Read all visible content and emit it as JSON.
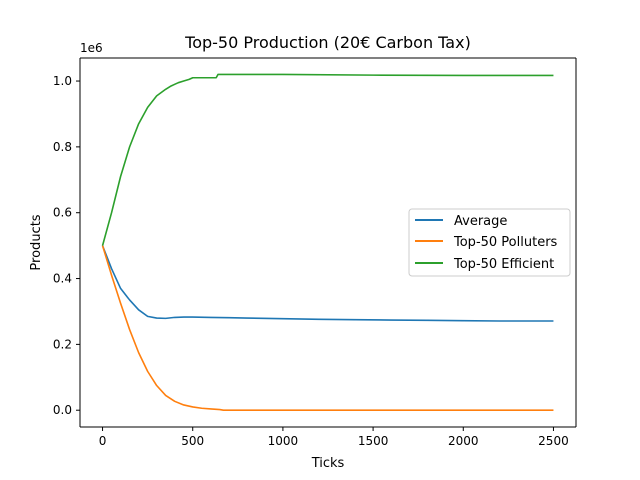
{
  "chart_data": {
    "type": "line",
    "title": "Top-50 Production (20€ Carbon Tax)",
    "xlabel": "Ticks",
    "ylabel": "Products",
    "y_multiplier_label": "1e6",
    "y_multiplier": 1000000,
    "xlim": [
      -125,
      2625
    ],
    "ylim": [
      -0.051,
      1.07
    ],
    "x_ticks": [
      0,
      500,
      1000,
      1500,
      2000,
      2500
    ],
    "x_tick_labels": [
      "0",
      "500",
      "1000",
      "1500",
      "2000",
      "2500"
    ],
    "y_ticks": [
      0.0,
      0.2,
      0.4,
      0.6,
      0.8,
      1.0
    ],
    "y_tick_labels": [
      "0.0",
      "0.2",
      "0.4",
      "0.6",
      "0.8",
      "1.0"
    ],
    "grid": false,
    "legend_position": "center-right",
    "series": [
      {
        "name": "Average",
        "color": "#1f77b4",
        "x": [
          0,
          50,
          100,
          150,
          200,
          250,
          300,
          350,
          400,
          450,
          500,
          600,
          700,
          800,
          1000,
          1200,
          1400,
          1600,
          1800,
          2000,
          2200,
          2400,
          2500
        ],
        "y": [
          0.5,
          0.43,
          0.37,
          0.335,
          0.305,
          0.285,
          0.28,
          0.279,
          0.282,
          0.283,
          0.283,
          0.282,
          0.281,
          0.28,
          0.278,
          0.276,
          0.275,
          0.274,
          0.273,
          0.272,
          0.271,
          0.271,
          0.271
        ]
      },
      {
        "name": "Top-50 Polluters",
        "color": "#ff7f0e",
        "x": [
          0,
          50,
          100,
          150,
          200,
          250,
          300,
          350,
          400,
          450,
          500,
          550,
          600,
          650,
          670,
          700,
          1000,
          1500,
          2000,
          2500
        ],
        "y": [
          0.5,
          0.41,
          0.325,
          0.245,
          0.175,
          0.118,
          0.075,
          0.045,
          0.027,
          0.016,
          0.01,
          0.006,
          0.004,
          0.002,
          0.0,
          0.0,
          0.0,
          0.0,
          0.0,
          0.0
        ]
      },
      {
        "name": "Top-50 Efficient",
        "color": "#2ca02c",
        "x": [
          0,
          50,
          100,
          150,
          200,
          250,
          300,
          350,
          380,
          400,
          420,
          450,
          480,
          500,
          550,
          600,
          630,
          640,
          700,
          1000,
          1500,
          2000,
          2500
        ],
        "y": [
          0.5,
          0.6,
          0.71,
          0.8,
          0.87,
          0.92,
          0.955,
          0.975,
          0.985,
          0.99,
          0.995,
          1.0,
          1.005,
          1.01,
          1.01,
          1.01,
          1.01,
          1.02,
          1.02,
          1.02,
          1.018,
          1.017,
          1.017
        ]
      }
    ]
  }
}
